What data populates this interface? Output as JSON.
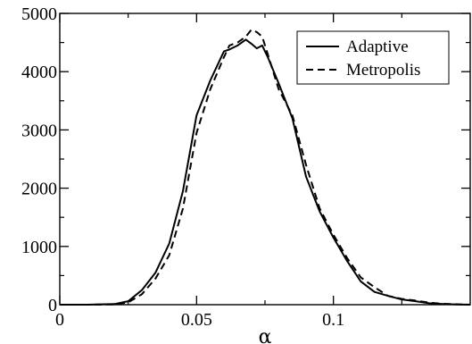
{
  "chart_data": {
    "type": "line",
    "title": "",
    "xlabel": "α",
    "ylabel": "",
    "xlim": [
      0,
      0.15
    ],
    "ylim": [
      0,
      5000
    ],
    "xticks": [
      0,
      0.05,
      0.1
    ],
    "xtick_labels": [
      "0",
      "0.05",
      "0.1"
    ],
    "yticks": [
      0,
      1000,
      2000,
      3000,
      4000,
      5000
    ],
    "ytick_labels": [
      "0",
      "1000",
      "2000",
      "3000",
      "4000",
      "5000"
    ],
    "grid": false,
    "legend_position": "top-right",
    "series": [
      {
        "name": "Adaptive",
        "style": "solid",
        "color": "#000000",
        "x": [
          0,
          0.01,
          0.02,
          0.025,
          0.03,
          0.035,
          0.04,
          0.045,
          0.05,
          0.055,
          0.06,
          0.062,
          0.065,
          0.068,
          0.07,
          0.072,
          0.074,
          0.076,
          0.08,
          0.085,
          0.09,
          0.095,
          0.1,
          0.105,
          0.11,
          0.115,
          0.12,
          0.125,
          0.13,
          0.135,
          0.14,
          0.15
        ],
        "y": [
          0,
          0,
          10,
          60,
          250,
          550,
          1050,
          1950,
          3250,
          3850,
          4350,
          4380,
          4450,
          4550,
          4480,
          4400,
          4450,
          4250,
          3800,
          3200,
          2200,
          1600,
          1150,
          750,
          400,
          220,
          150,
          90,
          60,
          25,
          10,
          0
        ]
      },
      {
        "name": "Metropolis",
        "style": "dashed",
        "color": "#000000",
        "x": [
          0,
          0.01,
          0.02,
          0.025,
          0.03,
          0.035,
          0.04,
          0.045,
          0.05,
          0.055,
          0.06,
          0.062,
          0.065,
          0.068,
          0.07,
          0.072,
          0.074,
          0.076,
          0.08,
          0.085,
          0.09,
          0.095,
          0.1,
          0.105,
          0.11,
          0.115,
          0.12,
          0.125,
          0.13,
          0.135,
          0.14,
          0.15
        ],
        "y": [
          0,
          0,
          5,
          40,
          180,
          450,
          850,
          1650,
          2950,
          3700,
          4250,
          4450,
          4500,
          4600,
          4720,
          4680,
          4600,
          4300,
          3700,
          3250,
          2400,
          1650,
          1200,
          800,
          470,
          300,
          150,
          100,
          70,
          35,
          15,
          0
        ]
      }
    ]
  }
}
